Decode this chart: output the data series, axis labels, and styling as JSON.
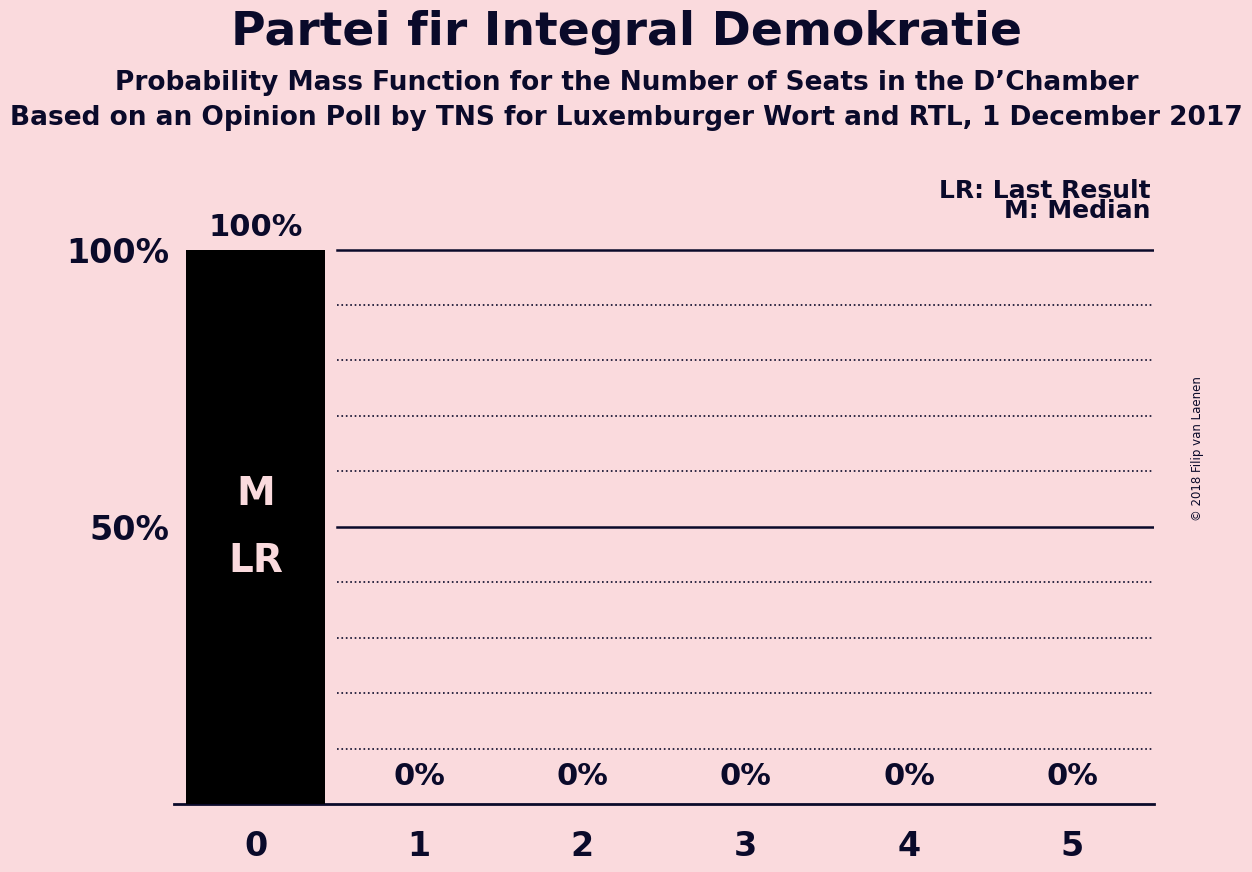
{
  "title": "Partei fir Integral Demokratie",
  "subtitle1": "Probability Mass Function for the Number of Seats in the D’Chamber",
  "subtitle2": "Based on an Opinion Poll by TNS for Luxemburger Wort and RTL, 1 December 2017",
  "copyright": "© 2018 Filip van Laenen",
  "categories": [
    0,
    1,
    2,
    3,
    4,
    5
  ],
  "values": [
    100,
    0,
    0,
    0,
    0,
    0
  ],
  "bar_color": "#000000",
  "background_color": "#fadadd",
  "bar_label_color": "#fadadd",
  "axis_label_color": "#0a0a2a",
  "ylabel_ticks": [
    10,
    20,
    30,
    40,
    50,
    60,
    70,
    80,
    90,
    100
  ],
  "legend_lr": "LR: Last Result",
  "legend_m": "M: Median",
  "bar_top_label": "100%",
  "title_fontsize": 34,
  "subtitle_fontsize": 19,
  "ylabel_fontsize": 24,
  "xlabel_fontsize": 24,
  "bar_label_fontsize": 22,
  "inner_label_fontsize": 28,
  "legend_fontsize": 18,
  "xlim": [
    -0.5,
    5.5
  ],
  "ylim": [
    0,
    110
  ],
  "bar_width": 0.85
}
